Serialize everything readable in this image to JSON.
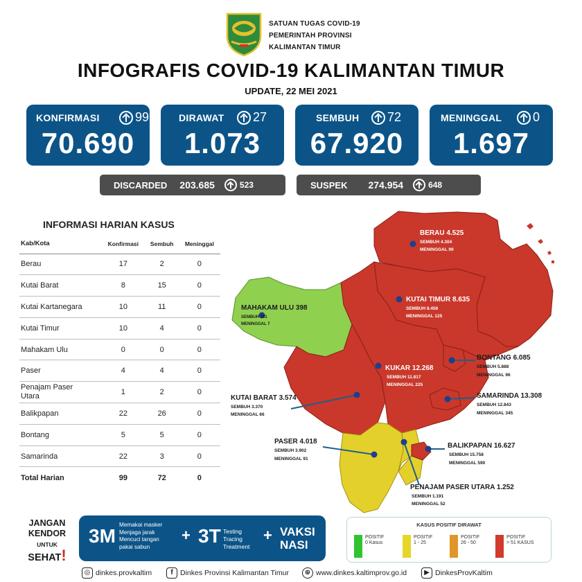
{
  "header": {
    "org_lines": [
      "SATUAN TUGAS COVID-19",
      "PEMERINTAH PROVINSI",
      "KALIMANTAN TIMUR"
    ],
    "title": "INFOGRAFIS COVID-19 KALIMANTAN TIMUR",
    "update": "UPDATE, 22 MEI 2021"
  },
  "stats": {
    "konfirmasi": {
      "label": "KONFIRMASI",
      "delta": "99",
      "value": "70.690"
    },
    "dirawat": {
      "label": "DIRAWAT",
      "delta": "27",
      "value": "1.073"
    },
    "sembuh": {
      "label": "SEMBUH",
      "delta": "72",
      "value": "67.920"
    },
    "meninggal": {
      "label": "MENINGGAL",
      "delta": "0",
      "value": "1.697"
    },
    "discarded": {
      "label": "DISCARDED",
      "value": "203.685",
      "delta": "523"
    },
    "suspek": {
      "label": "SUSPEK",
      "value": "274.954",
      "delta": "648"
    }
  },
  "daily_table": {
    "title": "INFORMASI HARIAN KASUS",
    "headers": [
      "Kab/Kota",
      "Konfirmasi",
      "Sembuh",
      "Meninggal"
    ],
    "rows": [
      [
        "Berau",
        "17",
        "2",
        "0"
      ],
      [
        "Kutai Barat",
        "8",
        "15",
        "0"
      ],
      [
        "Kutai Kartanegara",
        "10",
        "11",
        "0"
      ],
      [
        "Kutai Timur",
        "10",
        "4",
        "0"
      ],
      [
        "Mahakam Ulu",
        "0",
        "0",
        "0"
      ],
      [
        "Paser",
        "4",
        "4",
        "0"
      ],
      [
        "Penajam Paser\nUtara",
        "1",
        "2",
        "0"
      ],
      [
        "Balikpapan",
        "22",
        "26",
        "0"
      ],
      [
        "Bontang",
        "5",
        "5",
        "0"
      ],
      [
        "Samarinda",
        "22",
        "3",
        "0"
      ]
    ],
    "total": [
      "Total Harian",
      "99",
      "72",
      "0"
    ]
  },
  "map": {
    "regions": {
      "berau": {
        "name": "BERAU 4.525",
        "sembuh": "SEMBUH 4.304",
        "meninggal": "MENINGGAL 99"
      },
      "kutai_timur": {
        "name": "KUTAI TIMUR 8.635",
        "sembuh": "SEMBUH 8.456",
        "meninggal": "MENINGGAL 125"
      },
      "mahakam_ulu": {
        "name": "MAHAKAM ULU 398",
        "sembuh": "SEMBUH 391",
        "meninggal": "MENINGGAL 7"
      },
      "bontang": {
        "name": "BONTANG 6.085",
        "sembuh": "SEMBUH 5.888",
        "meninggal": "MENINGGAL 96"
      },
      "kukar": {
        "name": "KUKAR 12.268",
        "sembuh": "SEMBUH 11.817",
        "meninggal": "MENINGGAL 225"
      },
      "kutai_barat": {
        "name": "KUTAI BARAT 3.574",
        "sembuh": "SEMBUH 3.370",
        "meninggal": "MENINGGAL 66"
      },
      "samarinda": {
        "name": "SAMARINDA 13.308",
        "sembuh": "SEMBUH 12.843",
        "meninggal": "MENINGGAL 345"
      },
      "paser": {
        "name": "PASER 4.018",
        "sembuh": "SEMBUH 3.902",
        "meninggal": "MENINGGAL 91"
      },
      "balikpapan": {
        "name": "BALIKPAPAN 16.627",
        "sembuh": "SEMBUH 15.758",
        "meninggal": "MENINGGAL 590"
      },
      "ppu": {
        "name": "PENAJAM PASER UTARA 1.252",
        "sembuh": "SEMBUH 1.191",
        "meninggal": "MENINGGAL 52"
      }
    },
    "colors": {
      "green": "#8fd14f",
      "yellow": "#e3d02b",
      "orange": "#e0962a",
      "red": "#c9382b"
    }
  },
  "campaign": {
    "jangan": "JANGAN",
    "kendor": "KENDOR",
    "untuk": "UNTUK",
    "sehat": "SEHAT",
    "m3": "3M",
    "m3_items": [
      "Memakai masker",
      "Menjaga jarak",
      "Mencuci tangan",
      "pakai sabun"
    ],
    "plus": "+",
    "t3": "3T",
    "t3_items": [
      "Testing",
      "Tracing",
      "Treatment"
    ],
    "vaksi": "VAKSI",
    "nasi": "NASI"
  },
  "legend": {
    "title": "KASUS POSITIF DIRAWAT",
    "items": [
      {
        "l1": "POSITIF",
        "l2": "0 Kasus",
        "color": "#2fc42f"
      },
      {
        "l1": "POSITIF",
        "l2": "1 - 25",
        "color": "#e5d629"
      },
      {
        "l1": "POSITIF",
        "l2": "26 - 50",
        "color": "#e0962a"
      },
      {
        "l1": "POSITIF",
        "l2": "> 51 KASUS",
        "color": "#d13a2c"
      }
    ]
  },
  "footer": {
    "instagram": "dinkes.provkaltim",
    "facebook": "Dinkes Provinsi Kalimantan Timur",
    "web": "www.dinkes.kaltimprov.go.id",
    "youtube": "DinkesProvKaltim"
  }
}
